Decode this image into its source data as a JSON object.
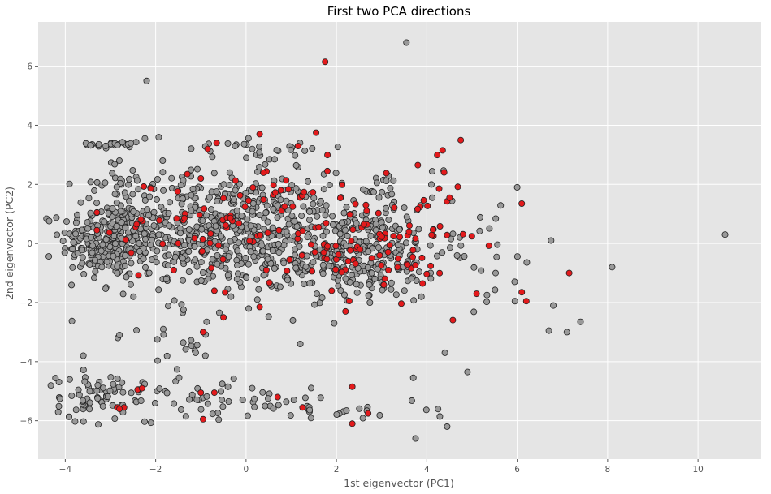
{
  "chart_data": {
    "type": "scatter",
    "title": "First two PCA directions",
    "xlabel": "1st eigenvector (PC1)",
    "ylabel": "2nd eigenvector (PC2)",
    "xlim": [
      -4.6,
      11.4
    ],
    "ylim": [
      -7.3,
      7.5
    ],
    "xticks": [
      -4,
      -2,
      0,
      2,
      4,
      6,
      8,
      10
    ],
    "yticks": [
      -6,
      -4,
      -2,
      0,
      2,
      4,
      6
    ],
    "grid": true,
    "background": "#e5e5e5",
    "series": [
      {
        "color": "#999999",
        "edge": "#222222",
        "clusters": [
          {
            "cx": -3.0,
            "cy": 0.1,
            "sx": 0.55,
            "sy": 0.65,
            "n": 260
          },
          {
            "cx": -2.9,
            "cy": 3.35,
            "sx": 0.3,
            "sy": 0.08,
            "n": 28
          },
          {
            "cx": -2.9,
            "cy": 2.0,
            "sx": 0.4,
            "sy": 0.4,
            "n": 25
          },
          {
            "cx": -0.6,
            "cy": 0.4,
            "sx": 1.2,
            "sy": 1.0,
            "n": 520
          },
          {
            "cx": 0.0,
            "cy": 3.3,
            "sx": 1.2,
            "sy": 0.25,
            "n": 30
          },
          {
            "cx": 2.3,
            "cy": -0.3,
            "sx": 1.1,
            "sy": 0.8,
            "n": 330
          },
          {
            "cx": 2.8,
            "cy": 1.7,
            "sx": 0.8,
            "sy": 0.5,
            "n": 35
          },
          {
            "cx": -3.5,
            "cy": -5.2,
            "sx": 0.35,
            "sy": 0.4,
            "n": 45
          },
          {
            "cx": -2.5,
            "cy": -5.0,
            "sx": 0.5,
            "sy": 0.4,
            "n": 30
          },
          {
            "cx": -0.5,
            "cy": -5.3,
            "sx": 1.0,
            "sy": 0.3,
            "n": 40
          },
          {
            "cx": 2.0,
            "cy": -5.6,
            "sx": 1.0,
            "sy": 0.2,
            "n": 25
          },
          {
            "cx": -1.5,
            "cy": -3.5,
            "sx": 0.6,
            "sy": 0.5,
            "n": 18
          },
          {
            "cx": 5.3,
            "cy": -0.2,
            "sx": 0.6,
            "sy": 0.9,
            "n": 22
          }
        ],
        "points": [
          [
            -2.2,
            5.5
          ],
          [
            3.55,
            6.8
          ],
          [
            10.6,
            0.3
          ],
          [
            8.1,
            -0.8
          ],
          [
            7.4,
            -2.65
          ],
          [
            7.1,
            -3.0
          ],
          [
            6.7,
            -2.95
          ],
          [
            6.8,
            -2.1
          ],
          [
            6.75,
            0.1
          ],
          [
            6.0,
            1.9
          ],
          [
            5.95,
            -1.95
          ],
          [
            4.9,
            -4.35
          ],
          [
            4.4,
            -3.7
          ],
          [
            4.45,
            -6.2
          ],
          [
            3.75,
            -6.6
          ],
          [
            3.7,
            -4.55
          ],
          [
            1.95,
            -2.7
          ],
          [
            1.2,
            -3.4
          ],
          [
            0.25,
            -1.9
          ],
          [
            -0.9,
            -3.8
          ],
          [
            -2.8,
            -3.1
          ],
          [
            -3.9,
            -4.6
          ],
          [
            -3.6,
            -3.8
          ]
        ]
      },
      {
        "color": "#e31a1c",
        "edge": "#222222",
        "clusters": [
          {
            "cx": -1.0,
            "cy": 0.5,
            "sx": 1.0,
            "sy": 0.9,
            "n": 45
          },
          {
            "cx": 2.5,
            "cy": 0.0,
            "sx": 1.0,
            "sy": 0.9,
            "n": 85
          },
          {
            "cx": 4.0,
            "cy": 0.6,
            "sx": 0.4,
            "sy": 1.0,
            "n": 20
          },
          {
            "cx": 0.9,
            "cy": 1.5,
            "sx": 0.6,
            "sy": 0.6,
            "n": 18
          }
        ],
        "points": [
          [
            1.75,
            6.15
          ],
          [
            1.55,
            3.75
          ],
          [
            1.15,
            3.3
          ],
          [
            0.3,
            3.7
          ],
          [
            4.75,
            3.5
          ],
          [
            4.35,
            3.15
          ],
          [
            3.8,
            2.65
          ],
          [
            6.1,
            1.35
          ],
          [
            6.1,
            -1.65
          ],
          [
            6.2,
            -1.95
          ],
          [
            7.15,
            -1.0
          ],
          [
            5.1,
            -1.7
          ],
          [
            0.3,
            -2.15
          ],
          [
            -0.5,
            -2.5
          ],
          [
            -0.7,
            -1.6
          ],
          [
            -0.95,
            -3.0
          ],
          [
            2.2,
            -2.3
          ],
          [
            -0.95,
            -5.95
          ],
          [
            -1.0,
            -5.05
          ],
          [
            -0.7,
            -5.05
          ],
          [
            -2.4,
            -4.95
          ],
          [
            -2.85,
            -5.55
          ],
          [
            -2.7,
            -5.55
          ],
          [
            0.7,
            -5.2
          ],
          [
            1.25,
            -5.55
          ],
          [
            2.35,
            -6.1
          ],
          [
            2.35,
            -4.85
          ],
          [
            2.7,
            -5.75
          ],
          [
            -3.3,
            1.05
          ],
          [
            -3.3,
            0.45
          ],
          [
            -1.6,
            -0.9
          ],
          [
            -0.85,
            3.2
          ],
          [
            -1.0,
            2.2
          ],
          [
            -1.3,
            2.35
          ],
          [
            -2.8,
            -5.6
          ],
          [
            -2.3,
            -4.9
          ],
          [
            -0.65,
            3.4
          ],
          [
            0.45,
            -0.9
          ],
          [
            1.8,
            2.45
          ],
          [
            3.05,
            -1.4
          ]
        ]
      }
    ]
  }
}
